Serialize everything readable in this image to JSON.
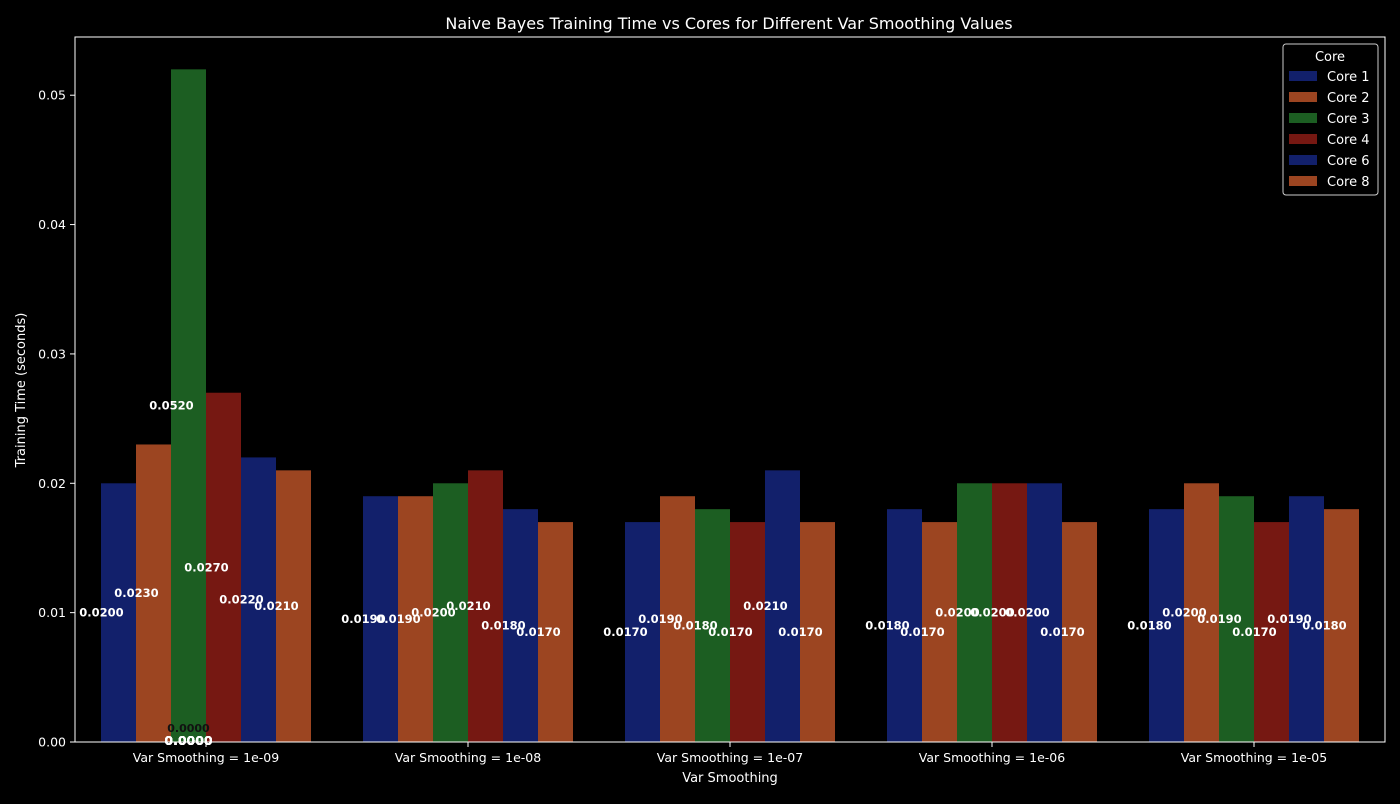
{
  "chart_data": {
    "type": "bar",
    "title": "Naive Bayes Training Time vs Cores for Different Var Smoothing Values",
    "xlabel": "Var Smoothing",
    "ylabel": "Training Time (seconds)",
    "ylim": [
      0,
      0.0545
    ],
    "yticks": [
      "0.00",
      "0.01",
      "0.02",
      "0.03",
      "0.04",
      "0.05"
    ],
    "ytick_values": [
      0,
      0.01,
      0.02,
      0.03,
      0.04,
      0.05
    ],
    "categories": [
      "Var Smoothing = 1e-09",
      "Var Smoothing = 1e-08",
      "Var Smoothing = 1e-07",
      "Var Smoothing = 1e-06",
      "Var Smoothing = 1e-05"
    ],
    "legend_title": "Core",
    "legend_position": "top-right",
    "grid": false,
    "series": [
      {
        "name": "Core 1",
        "color": "#12206b",
        "values": [
          0.02,
          0.019,
          0.017,
          0.018,
          0.018
        ],
        "labels": [
          "0.0200",
          "0.0190",
          "0.0170",
          "0.0180",
          "0.0180"
        ]
      },
      {
        "name": "Core 2",
        "color": "#9c4521",
        "values": [
          0.023,
          0.019,
          0.019,
          0.017,
          0.02
        ],
        "labels": [
          "0.0230",
          "0.0190",
          "0.0190",
          "0.0170",
          "0.0200"
        ]
      },
      {
        "name": "Core 3",
        "color": "#1c5e22",
        "values": [
          0.052,
          0.02,
          0.018,
          0.02,
          0.019
        ],
        "labels": [
          "0.0520",
          "0.0200",
          "0.0180",
          "0.0200",
          "0.0190"
        ]
      },
      {
        "name": "Core 4",
        "color": "#761812",
        "values": [
          0.027,
          0.021,
          0.017,
          0.02,
          0.017
        ],
        "labels": [
          "0.0270",
          "0.0210",
          "0.0170",
          "0.0200",
          "0.0170"
        ]
      },
      {
        "name": "Core 6",
        "color": "#12206b",
        "values": [
          0.022,
          0.018,
          0.021,
          0.02,
          0.019
        ],
        "labels": [
          "0.0220",
          "0.0180",
          "0.0210",
          "0.0200",
          "0.0190"
        ]
      },
      {
        "name": "Core 8",
        "color": "#9c4521",
        "values": [
          0.021,
          0.017,
          0.017,
          0.017,
          0.018
        ],
        "labels": [
          "0.0210",
          "0.0170",
          "0.0170",
          "0.0170",
          "0.0180"
        ]
      }
    ],
    "zero_annotations": [
      "0.0000",
      "0.0000",
      "0.0000",
      "0.0000",
      "0.0000",
      "0.0000",
      "0.0000"
    ]
  }
}
